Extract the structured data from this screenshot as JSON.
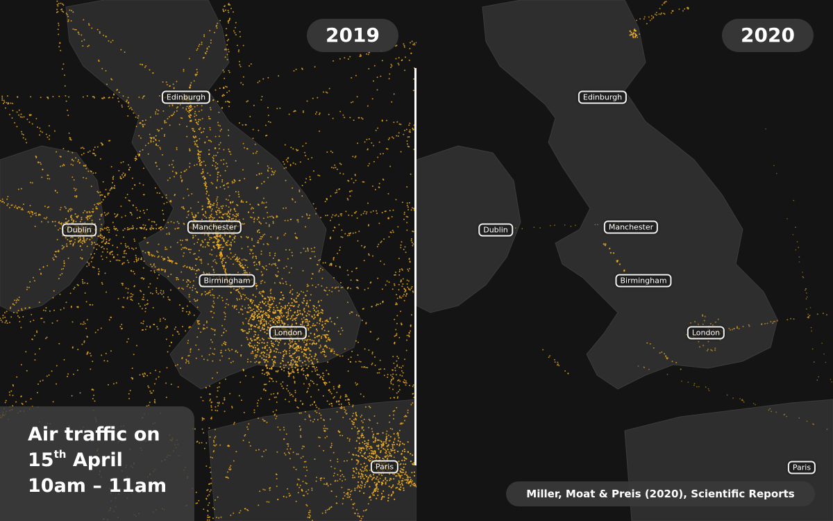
{
  "panels": {
    "left": {
      "year": "2019",
      "cities": [
        {
          "name": "Edinburgh"
        },
        {
          "name": "Dublin"
        },
        {
          "name": "Manchester"
        },
        {
          "name": "Birmingham"
        },
        {
          "name": "London"
        },
        {
          "name": "Paris"
        }
      ]
    },
    "right": {
      "year": "2020",
      "cities": [
        {
          "name": "Edinburgh"
        },
        {
          "name": "Dublin"
        },
        {
          "name": "Manchester"
        },
        {
          "name": "Birmingham"
        },
        {
          "name": "London"
        },
        {
          "name": "Paris"
        }
      ]
    }
  },
  "caption": {
    "line1": "Air traffic on",
    "day": "15",
    "day_suffix": "th",
    "month": " April",
    "line3": "10am – 11am"
  },
  "credit": "Miller, Moat & Preis (2020), Scientific Reports",
  "colors": {
    "background": "#141414",
    "land": "#2c2c2c",
    "traffic": "#f5b324",
    "label_border": "#f2f2f2"
  }
}
